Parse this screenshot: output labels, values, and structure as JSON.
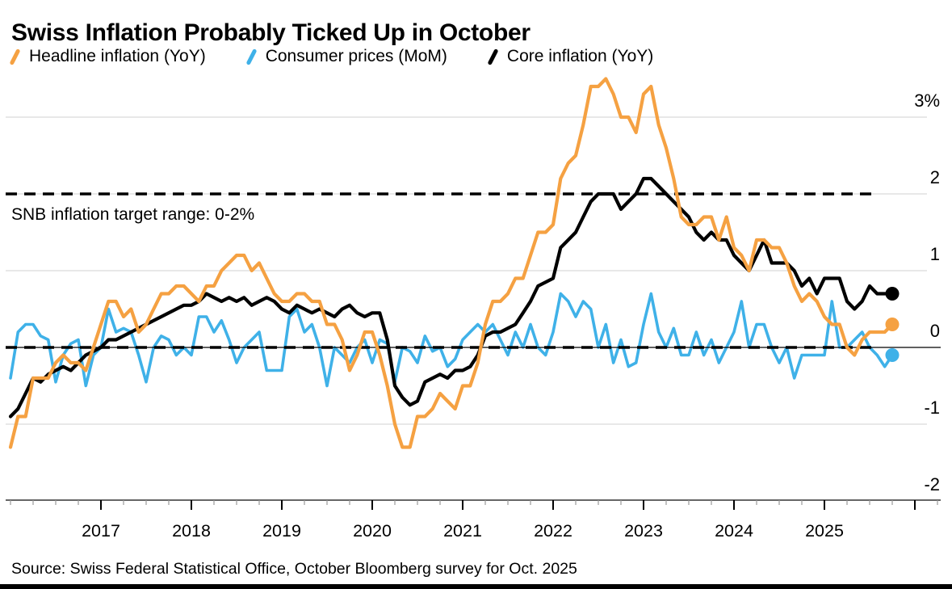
{
  "title": "Swiss Inflation Probably Ticked Up in October",
  "source": "Source: Swiss Federal Statistical Office, October Bloomberg survey for Oct. 2025",
  "legend": [
    {
      "label": "Headline inflation (YoY)",
      "color": "#F5A142"
    },
    {
      "label": "Consumer prices (MoM)",
      "color": "#3FB1E8"
    },
    {
      "label": "Core inflation (YoY)",
      "color": "#000000"
    }
  ],
  "chart_data": {
    "type": "line",
    "title": "Swiss Inflation Probably Ticked Up in October",
    "annotation": "SNB inflation target range: 0-2%",
    "x_start": "2016-01",
    "x_end": "2025-10",
    "frequency": "monthly",
    "last_point_note": "Oct. 2025 values are October Bloomberg survey estimates, shown as dots",
    "xticks": [
      "2017",
      "2018",
      "2019",
      "2020",
      "2021",
      "2022",
      "2023",
      "2024",
      "2025"
    ],
    "yticks": [
      "3%",
      "2",
      "1",
      "0",
      "-1",
      "-2"
    ],
    "ylim": [
      -2,
      3.5
    ],
    "grid": "horizontal",
    "legend_position": "top",
    "reference_lines": [
      {
        "value": 2,
        "style": "dashed",
        "color": "#000000"
      },
      {
        "value": 0,
        "style": "dashed",
        "color": "#000000"
      }
    ],
    "series": [
      {
        "name": "Headline inflation (YoY)",
        "color": "#F5A142",
        "end_dot": true,
        "values": [
          -1.3,
          -0.9,
          -0.9,
          -0.4,
          -0.4,
          -0.4,
          -0.2,
          -0.1,
          -0.2,
          -0.2,
          -0.3,
          0.0,
          0.3,
          0.6,
          0.6,
          0.4,
          0.5,
          0.2,
          0.3,
          0.5,
          0.7,
          0.7,
          0.8,
          0.8,
          0.7,
          0.6,
          0.8,
          0.8,
          1.0,
          1.1,
          1.2,
          1.2,
          1.0,
          1.1,
          0.9,
          0.7,
          0.6,
          0.6,
          0.7,
          0.7,
          0.6,
          0.6,
          0.3,
          0.3,
          0.1,
          -0.3,
          -0.1,
          0.2,
          0.2,
          -0.1,
          -0.5,
          -1.0,
          -1.3,
          -1.3,
          -0.9,
          -0.9,
          -0.8,
          -0.6,
          -0.7,
          -0.8,
          -0.5,
          -0.5,
          -0.2,
          0.3,
          0.6,
          0.6,
          0.7,
          0.9,
          0.9,
          1.2,
          1.5,
          1.5,
          1.6,
          2.2,
          2.4,
          2.5,
          2.9,
          3.4,
          3.4,
          3.5,
          3.3,
          3.0,
          3.0,
          2.8,
          3.3,
          3.4,
          2.9,
          2.6,
          2.2,
          1.7,
          1.6,
          1.6,
          1.7,
          1.7,
          1.4,
          1.7,
          1.3,
          1.2,
          1.0,
          1.4,
          1.4,
          1.3,
          1.3,
          1.1,
          0.8,
          0.6,
          0.7,
          0.6,
          0.4,
          0.3,
          0.3,
          0.0,
          -0.1,
          0.1,
          0.2,
          0.2,
          0.2,
          0.3
        ]
      },
      {
        "name": "Consumer prices (MoM)",
        "color": "#3FB1E8",
        "end_dot": true,
        "values": [
          -0.4,
          0.2,
          0.3,
          0.3,
          0.15,
          0.1,
          -0.45,
          -0.1,
          0.05,
          0.1,
          -0.5,
          -0.1,
          0.0,
          0.5,
          0.2,
          0.25,
          0.2,
          -0.1,
          -0.45,
          0.0,
          0.15,
          0.1,
          -0.1,
          0.0,
          -0.1,
          0.4,
          0.4,
          0.2,
          0.35,
          0.1,
          -0.2,
          0.0,
          0.1,
          0.2,
          -0.3,
          -0.3,
          -0.3,
          0.4,
          0.5,
          0.2,
          0.3,
          0.0,
          -0.5,
          0.0,
          -0.1,
          -0.2,
          0.0,
          0.1,
          -0.2,
          0.1,
          0.05,
          -0.45,
          0.0,
          -0.05,
          -0.2,
          0.15,
          -0.05,
          0.0,
          -0.25,
          -0.15,
          0.1,
          0.2,
          0.3,
          0.2,
          0.3,
          0.1,
          -0.1,
          0.2,
          0.0,
          0.3,
          0.0,
          -0.1,
          0.2,
          0.7,
          0.6,
          0.4,
          0.6,
          0.5,
          0.0,
          0.3,
          -0.2,
          0.1,
          -0.25,
          -0.2,
          0.3,
          0.7,
          0.2,
          0.0,
          0.25,
          -0.1,
          -0.1,
          0.2,
          -0.1,
          0.1,
          -0.2,
          0.0,
          0.2,
          0.6,
          0.0,
          0.3,
          0.3,
          0.0,
          -0.2,
          0.0,
          -0.4,
          -0.1,
          -0.1,
          -0.1,
          -0.1,
          0.6,
          0.0,
          0.0,
          0.1,
          0.2,
          0.0,
          -0.1,
          -0.25,
          -0.1
        ]
      },
      {
        "name": "Core inflation (YoY)",
        "color": "#000000",
        "end_dot": true,
        "values": [
          -0.9,
          -0.8,
          -0.6,
          -0.4,
          -0.45,
          -0.35,
          -0.3,
          -0.25,
          -0.3,
          -0.2,
          -0.1,
          -0.05,
          0.0,
          0.1,
          0.1,
          0.15,
          0.2,
          0.25,
          0.3,
          0.35,
          0.4,
          0.45,
          0.5,
          0.55,
          0.55,
          0.6,
          0.7,
          0.65,
          0.6,
          0.65,
          0.6,
          0.65,
          0.55,
          0.6,
          0.65,
          0.6,
          0.5,
          0.45,
          0.55,
          0.5,
          0.45,
          0.5,
          0.45,
          0.4,
          0.5,
          0.55,
          0.45,
          0.4,
          0.45,
          0.45,
          0.1,
          -0.5,
          -0.65,
          -0.75,
          -0.7,
          -0.45,
          -0.4,
          -0.35,
          -0.4,
          -0.3,
          -0.3,
          -0.25,
          -0.1,
          0.15,
          0.2,
          0.2,
          0.25,
          0.3,
          0.45,
          0.6,
          0.8,
          0.85,
          0.9,
          1.3,
          1.4,
          1.5,
          1.7,
          1.9,
          2.0,
          2.0,
          2.0,
          1.8,
          1.9,
          2.0,
          2.2,
          2.2,
          2.1,
          2.0,
          1.9,
          1.8,
          1.7,
          1.5,
          1.4,
          1.5,
          1.4,
          1.4,
          1.2,
          1.1,
          1.0,
          1.2,
          1.4,
          1.1,
          1.1,
          1.1,
          1.0,
          0.8,
          0.9,
          0.7,
          0.9,
          0.9,
          0.9,
          0.6,
          0.5,
          0.6,
          0.8,
          0.7,
          0.7,
          0.7
        ]
      }
    ]
  }
}
